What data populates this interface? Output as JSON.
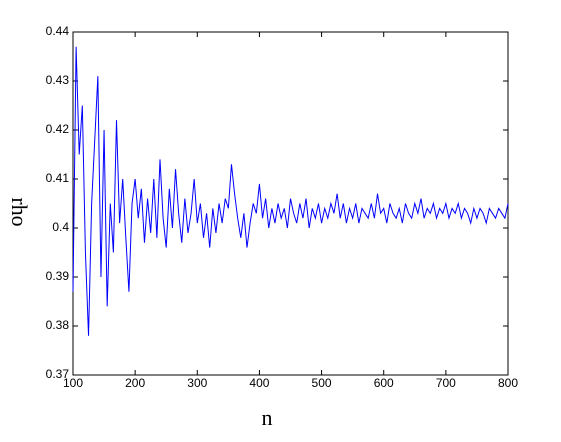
{
  "chart_data": {
    "type": "line",
    "xlabel": "n",
    "ylabel": "rho",
    "color": "#0000ff",
    "x": [
      100,
      105,
      110,
      115,
      120,
      125,
      130,
      135,
      140,
      145,
      150,
      155,
      160,
      165,
      170,
      175,
      180,
      185,
      190,
      195,
      200,
      205,
      210,
      215,
      220,
      225,
      230,
      235,
      240,
      245,
      250,
      255,
      260,
      265,
      270,
      275,
      280,
      285,
      290,
      295,
      300,
      305,
      310,
      315,
      320,
      325,
      330,
      335,
      340,
      345,
      350,
      355,
      360,
      365,
      370,
      375,
      380,
      385,
      390,
      395,
      400,
      405,
      410,
      415,
      420,
      425,
      430,
      435,
      440,
      445,
      450,
      455,
      460,
      465,
      470,
      475,
      480,
      485,
      490,
      495,
      500,
      505,
      510,
      515,
      520,
      525,
      530,
      535,
      540,
      545,
      550,
      555,
      560,
      565,
      570,
      575,
      580,
      585,
      590,
      595,
      600,
      605,
      610,
      615,
      620,
      625,
      630,
      635,
      640,
      645,
      650,
      655,
      660,
      665,
      670,
      675,
      680,
      685,
      690,
      695,
      700,
      705,
      710,
      715,
      720,
      725,
      730,
      735,
      740,
      745,
      750,
      755,
      760,
      765,
      770,
      775,
      780,
      785,
      790,
      795,
      800
    ],
    "values": [
      0.387,
      0.437,
      0.415,
      0.425,
      0.395,
      0.378,
      0.405,
      0.418,
      0.431,
      0.39,
      0.42,
      0.384,
      0.405,
      0.395,
      0.422,
      0.401,
      0.41,
      0.398,
      0.387,
      0.405,
      0.41,
      0.402,
      0.408,
      0.397,
      0.406,
      0.399,
      0.41,
      0.398,
      0.414,
      0.402,
      0.396,
      0.408,
      0.4,
      0.412,
      0.403,
      0.397,
      0.406,
      0.399,
      0.403,
      0.41,
      0.401,
      0.405,
      0.398,
      0.403,
      0.396,
      0.404,
      0.399,
      0.405,
      0.401,
      0.406,
      0.404,
      0.413,
      0.407,
      0.402,
      0.398,
      0.403,
      0.396,
      0.401,
      0.405,
      0.403,
      0.409,
      0.402,
      0.406,
      0.4,
      0.404,
      0.401,
      0.405,
      0.402,
      0.404,
      0.4,
      0.406,
      0.403,
      0.401,
      0.405,
      0.402,
      0.406,
      0.4,
      0.404,
      0.402,
      0.405,
      0.401,
      0.404,
      0.402,
      0.405,
      0.403,
      0.407,
      0.402,
      0.405,
      0.401,
      0.404,
      0.402,
      0.405,
      0.401,
      0.404,
      0.403,
      0.402,
      0.405,
      0.402,
      0.407,
      0.403,
      0.404,
      0.401,
      0.405,
      0.403,
      0.402,
      0.404,
      0.401,
      0.405,
      0.403,
      0.402,
      0.405,
      0.403,
      0.406,
      0.402,
      0.404,
      0.403,
      0.405,
      0.402,
      0.404,
      0.403,
      0.405,
      0.402,
      0.404,
      0.403,
      0.405,
      0.402,
      0.404,
      0.403,
      0.401,
      0.404,
      0.402,
      0.404,
      0.403,
      0.401,
      0.404,
      0.403,
      0.402,
      0.404,
      0.403,
      0.402,
      0.405
    ],
    "xlim": [
      100,
      800
    ],
    "xticks": [
      100,
      200,
      300,
      400,
      500,
      600,
      700,
      800
    ],
    "ylim": [
      0.37,
      0.44
    ],
    "yticks": [
      0.37,
      0.38,
      0.39,
      0.4,
      0.41,
      0.42,
      0.43,
      0.44
    ]
  }
}
